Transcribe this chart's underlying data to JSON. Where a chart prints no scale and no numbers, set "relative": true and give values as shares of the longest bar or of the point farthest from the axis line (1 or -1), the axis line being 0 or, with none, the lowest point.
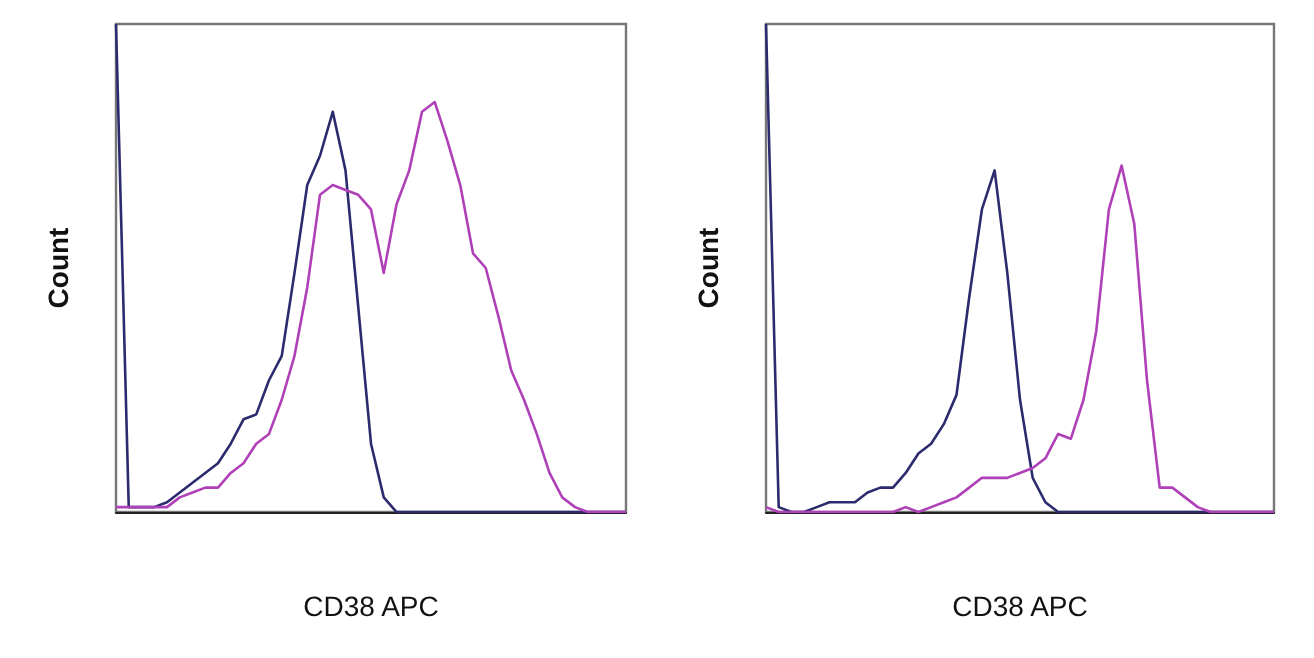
{
  "chart_data": [
    {
      "type": "line",
      "relative": true,
      "xlabel": "CD38 APC",
      "ylabel": "Count",
      "grid": false,
      "marker": "none",
      "line_style": "solid",
      "categories": [
        null,
        null,
        null,
        null,
        null,
        null,
        null,
        null,
        null,
        null,
        null,
        null,
        null,
        null,
        null,
        null,
        null,
        null,
        null,
        null,
        null,
        null,
        null,
        null,
        null,
        null,
        null,
        null,
        null,
        null,
        null,
        null,
        null,
        null,
        null,
        null,
        null,
        null,
        null,
        null,
        null
      ],
      "series": [
        {
          "color": "#2b2b6e",
          "values": [
            1,
            0.01,
            0.01,
            0.01,
            0.02,
            0.04,
            0.06,
            0.08,
            0.1,
            0.14,
            0.19,
            0.2,
            0.27,
            0.32,
            0.49,
            0.67,
            0.73,
            0.82,
            0.7,
            0.42,
            0.14,
            0.03,
            0,
            0,
            0,
            0,
            0,
            0,
            0,
            0,
            0,
            0,
            0,
            0,
            0,
            0,
            0,
            0,
            0,
            0,
            0
          ]
        },
        {
          "color": "#b040b8",
          "values": [
            0.01,
            0.01,
            0.01,
            0.01,
            0.01,
            0.03,
            0.04,
            0.05,
            0.05,
            0.08,
            0.1,
            0.14,
            0.16,
            0.23,
            0.32,
            0.46,
            0.65,
            0.67,
            0.66,
            0.65,
            0.62,
            0.49,
            0.63,
            0.7,
            0.82,
            0.84,
            0.76,
            0.67,
            0.53,
            0.5,
            0.4,
            0.29,
            0.23,
            0.16,
            0.08,
            0.03,
            0.01,
            0,
            0,
            0,
            0
          ]
        }
      ]
    },
    {
      "type": "line",
      "relative": true,
      "xlabel": "CD38 APC",
      "ylabel": "Count",
      "grid": false,
      "marker": "none",
      "line_style": "solid",
      "categories": [
        null,
        null,
        null,
        null,
        null,
        null,
        null,
        null,
        null,
        null,
        null,
        null,
        null,
        null,
        null,
        null,
        null,
        null,
        null,
        null,
        null,
        null,
        null,
        null,
        null,
        null,
        null,
        null,
        null,
        null,
        null,
        null,
        null,
        null,
        null,
        null,
        null,
        null,
        null,
        null,
        null
      ],
      "series": [
        {
          "color": "#2b2b6e",
          "values": [
            1,
            0.01,
            0,
            0,
            0.01,
            0.02,
            0.02,
            0.02,
            0.04,
            0.05,
            0.05,
            0.08,
            0.12,
            0.14,
            0.18,
            0.24,
            0.44,
            0.62,
            0.7,
            0.49,
            0.23,
            0.07,
            0.02,
            0,
            0,
            0,
            0,
            0,
            0,
            0,
            0,
            0,
            0,
            0,
            0,
            0,
            0,
            0,
            0,
            0,
            0
          ]
        },
        {
          "color": "#b040b8",
          "values": [
            0.01,
            0,
            0,
            0,
            0,
            0,
            0,
            0,
            0,
            0,
            0,
            0.01,
            0,
            0.01,
            0.02,
            0.03,
            0.05,
            0.07,
            0.07,
            0.07,
            0.08,
            0.09,
            0.11,
            0.16,
            0.15,
            0.23,
            0.37,
            0.62,
            0.71,
            0.59,
            0.27,
            0.05,
            0.05,
            0.03,
            0.01,
            0,
            0,
            0,
            0,
            0,
            0
          ]
        }
      ]
    }
  ]
}
